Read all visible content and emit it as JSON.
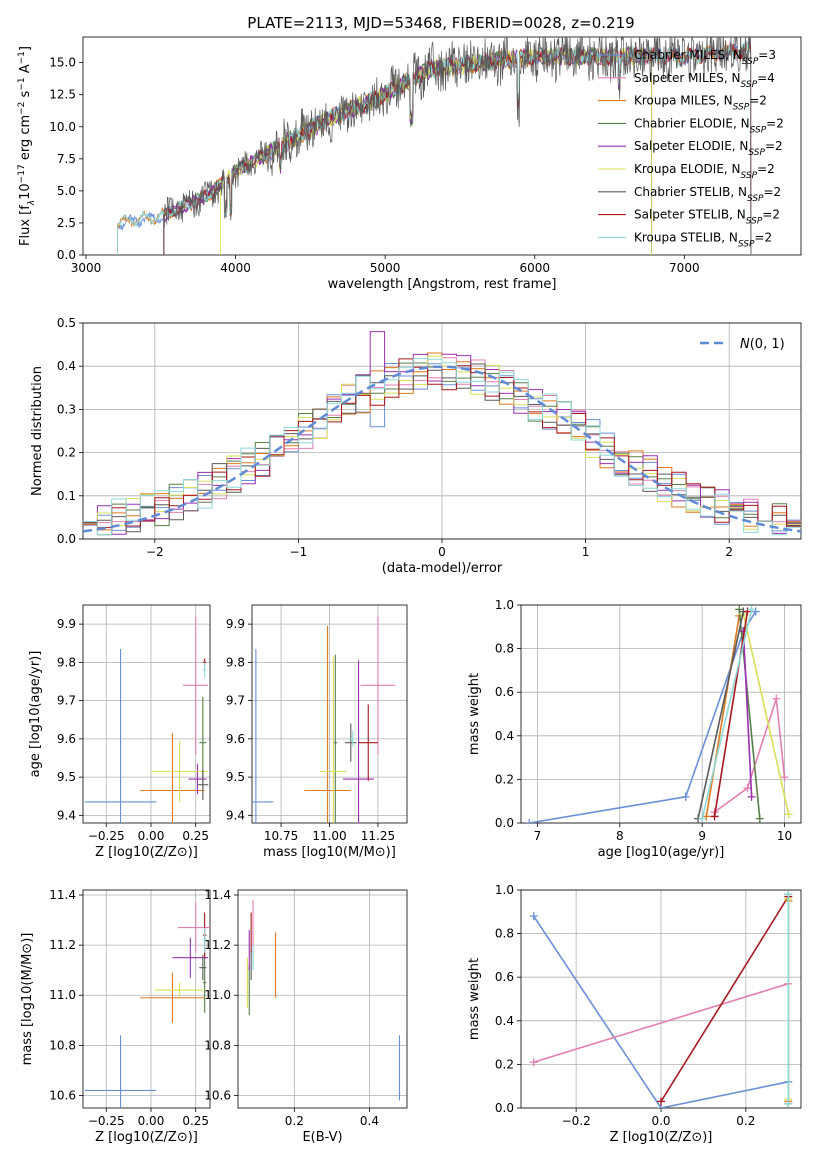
{
  "colors": {
    "Chabrier MILES": "#6a8fd8",
    "Salpeter MILES": "#e47fb2",
    "Kroupa MILES": "#e0781e",
    "Chabrier ELODIE": "#587f48",
    "Salpeter ELODIE": "#9b30b0",
    "Kroupa ELODIE": "#d8e05a",
    "Chabrier STELIB": "#5a5a5a",
    "Salpeter STELIB": "#a8171e",
    "Kroupa STELIB": "#8ed8d8",
    "Normal": "#5f8ad6"
  },
  "chart_data": [
    {
      "type": "line",
      "title": "PLATE=2113, MJD=53468, FIBERID=0028, z=0.219",
      "xlabel": "wavelength [Angstrom, rest frame]",
      "ylabel_parts": [
        "Flux [f",
        "λ",
        "10",
        "−17",
        " erg cm",
        "−2",
        " s",
        "−1",
        " A",
        "−1",
        "]"
      ],
      "xlim": [
        2980,
        7780
      ],
      "ylim": [
        0,
        17
      ],
      "xticks": [
        3000,
        4000,
        5000,
        6000,
        7000
      ],
      "yticks": [
        0.0,
        2.5,
        5.0,
        7.5,
        10.0,
        12.5,
        15.0
      ],
      "grid": false,
      "legend_position": "right",
      "legend": [
        {
          "prefix": "Chabrier MILES, N",
          "sub": "SSP",
          "suffix": "=3"
        },
        {
          "prefix": "Salpeter MILES, N",
          "sub": "SSP",
          "suffix": "=4"
        },
        {
          "prefix": "Kroupa MILES, N",
          "sub": "SSP",
          "suffix": "=2"
        },
        {
          "prefix": "Chabrier ELODIE, N",
          "sub": "SSP",
          "suffix": "=2"
        },
        {
          "prefix": "Salpeter ELODIE, N",
          "sub": "SSP",
          "suffix": "=2"
        },
        {
          "prefix": "Kroupa ELODIE, N",
          "sub": "SSP",
          "suffix": "=2"
        },
        {
          "prefix": "Chabrier STELIB, N",
          "sub": "SSP",
          "suffix": "=2"
        },
        {
          "prefix": "Salpeter STELIB, N",
          "sub": "SSP",
          "suffix": "=2"
        },
        {
          "prefix": "Kroupa STELIB, N",
          "sub": "SSP",
          "suffix": "=2"
        }
      ],
      "spectrum_start_angstrom": 3210,
      "spectrum_end_angstrom": 7445,
      "continuum_anchors": [
        [
          3210,
          2.5
        ],
        [
          3500,
          3.0
        ],
        [
          3800,
          4.5
        ],
        [
          4000,
          6.5
        ],
        [
          4300,
          8.5
        ],
        [
          4600,
          10.5
        ],
        [
          5000,
          12.5
        ],
        [
          5300,
          14.5
        ],
        [
          6000,
          15.5
        ],
        [
          7000,
          15.5
        ],
        [
          7440,
          16.0
        ]
      ]
    },
    {
      "type": "line",
      "xlabel": "(data-model)/error",
      "ylabel": "Normed distribution",
      "xlim": [
        -2.5,
        2.5
      ],
      "ylim": [
        0,
        0.5
      ],
      "xticks": [
        -2,
        -1,
        0,
        1,
        2
      ],
      "yticks": [
        0.0,
        0.1,
        0.2,
        0.3,
        0.4,
        0.5
      ],
      "grid": true,
      "legend_position": "upper right",
      "legend_label": "N(0,1)",
      "histogram_bins": 50,
      "normal_curve": {
        "mu": 0,
        "sigma": 1
      }
    },
    {
      "type": "scatter",
      "xlabel": "Z [log10(Z/Z⊙)]",
      "ylabel": "age  [log10(age/yr)]",
      "xlim": [
        -0.38,
        0.33
      ],
      "ylim": [
        9.38,
        9.95
      ],
      "xticks": [
        -0.25,
        0.0,
        0.25
      ],
      "yticks": [
        9.4,
        9.5,
        9.6,
        9.7,
        9.8,
        9.9
      ],
      "xtick_labels": [
        "−0.25",
        "0.00",
        "0.25"
      ],
      "grid": true,
      "points": [
        {
          "model": "Chabrier MILES",
          "x": -0.17,
          "xerr": 0.2,
          "y": 9.435,
          "yerr": 0.4
        },
        {
          "model": "Salpeter MILES",
          "x": 0.25,
          "xerr": 0.07,
          "y": 9.74,
          "yerr": 0.18
        },
        {
          "model": "Kroupa MILES",
          "x": 0.12,
          "xerr": 0.18,
          "y": 9.465,
          "yerr": 0.15
        },
        {
          "model": "Chabrier ELODIE",
          "x": 0.29,
          "xerr": 0.02,
          "y": 9.59,
          "yerr": 0.12
        },
        {
          "model": "Salpeter ELODIE",
          "x": 0.26,
          "xerr": 0.05,
          "y": 9.495,
          "yerr": 0.04
        },
        {
          "model": "Kroupa ELODIE",
          "x": 0.16,
          "xerr": 0.16,
          "y": 9.515,
          "yerr": 0.08
        },
        {
          "model": "Chabrier STELIB",
          "x": 0.29,
          "xerr": 0.03,
          "y": 9.48,
          "yerr": 0.04
        },
        {
          "model": "Salpeter STELIB",
          "x": 0.3,
          "xerr": 0.01,
          "y": 9.8,
          "yerr": 0.01
        },
        {
          "model": "Kroupa STELIB",
          "x": 0.3,
          "xerr": 0.01,
          "y": 9.78,
          "yerr": 0.02
        }
      ]
    },
    {
      "type": "scatter",
      "xlabel": "mass [log10(M/M⊙)]",
      "xlim": [
        10.6,
        11.4
      ],
      "ylim": [
        9.38,
        9.95
      ],
      "xticks": [
        10.75,
        11.0,
        11.25
      ],
      "yticks": [
        9.4,
        9.5,
        9.6,
        9.7,
        9.8,
        9.9
      ],
      "xtick_labels": [
        "10.75",
        "11.00",
        "11.25"
      ],
      "grid": true,
      "points": [
        {
          "model": "Chabrier MILES",
          "x": 10.62,
          "xerr": 0.09,
          "y": 9.435,
          "yerr": 0.4
        },
        {
          "model": "Salpeter MILES",
          "x": 11.25,
          "xerr": 0.09,
          "y": 9.74,
          "yerr": 0.18
        },
        {
          "model": "Kroupa MILES",
          "x": 10.99,
          "xerr": 0.12,
          "y": 9.465,
          "yerr": 0.43
        },
        {
          "model": "Chabrier ELODIE",
          "x": 11.03,
          "xerr": 0.01,
          "y": 9.59,
          "yerr": 0.23
        },
        {
          "model": "Salpeter ELODIE",
          "x": 11.15,
          "xerr": 0.08,
          "y": 9.495,
          "yerr": 0.31
        },
        {
          "model": "Kroupa ELODIE",
          "x": 11.02,
          "xerr": 0.07,
          "y": 9.515,
          "yerr": 0.3
        },
        {
          "model": "Chabrier STELIB",
          "x": 11.11,
          "xerr": 0.03,
          "y": 9.59,
          "yerr": 0.05
        },
        {
          "model": "Salpeter STELIB",
          "x": 11.2,
          "xerr": 0.05,
          "y": 9.59,
          "yerr": 0.1
        },
        {
          "model": "Kroupa STELIB",
          "x": 11.12,
          "xerr": 0.02,
          "y": 9.6,
          "yerr": 0.02
        }
      ]
    },
    {
      "type": "line",
      "xlabel": "age  [log10(age/yr)]",
      "ylabel": "mass weight",
      "xlim": [
        6.8,
        10.2
      ],
      "ylim": [
        0,
        1.0
      ],
      "xticks": [
        7,
        8,
        9,
        10
      ],
      "yticks": [
        0.0,
        0.2,
        0.4,
        0.6,
        0.8,
        1.0
      ],
      "grid": true,
      "series": [
        {
          "model": "Chabrier MILES",
          "x": [
            6.9,
            8.8,
            9.5,
            9.65
          ],
          "y": [
            0.0,
            0.12,
            0.88,
            0.97
          ]
        },
        {
          "model": "Salpeter MILES",
          "x": [
            9.15,
            9.55,
            9.9,
            10.0
          ],
          "y": [
            0.05,
            0.16,
            0.57,
            0.21
          ]
        },
        {
          "model": "Kroupa MILES",
          "x": [
            9.05,
            9.45
          ],
          "y": [
            0.03,
            0.95
          ]
        },
        {
          "model": "Chabrier ELODIE",
          "x": [
            9.45,
            9.7
          ],
          "y": [
            0.98,
            0.02
          ]
        },
        {
          "model": "Salpeter ELODIE",
          "x": [
            9.5,
            9.6
          ],
          "y": [
            0.88,
            0.12
          ]
        },
        {
          "model": "Kroupa ELODIE",
          "x": [
            9.5,
            10.05
          ],
          "y": [
            0.96,
            0.04
          ]
        },
        {
          "model": "Chabrier STELIB",
          "x": [
            8.95,
            9.5
          ],
          "y": [
            0.02,
            0.97
          ]
        },
        {
          "model": "Salpeter STELIB",
          "x": [
            9.15,
            9.55
          ],
          "y": [
            0.03,
            0.97
          ]
        },
        {
          "model": "Kroupa STELIB",
          "x": [
            9.0,
            9.6
          ],
          "y": [
            0.02,
            0.98
          ]
        }
      ]
    },
    {
      "type": "scatter",
      "xlabel": "Z [log10(Z/Z⊙)]",
      "ylabel": "mass [log10(M/M⊙)]",
      "xlim": [
        -0.38,
        0.33
      ],
      "ylim": [
        10.55,
        11.42
      ],
      "xticks": [
        -0.25,
        0.0,
        0.25
      ],
      "yticks": [
        10.6,
        10.8,
        11.0,
        11.2,
        11.4
      ],
      "xtick_labels": [
        "−0.25",
        "0.00",
        "0.25"
      ],
      "grid": true,
      "points": [
        {
          "model": "Chabrier MILES",
          "x": -0.17,
          "xerr": 0.2,
          "y": 10.62,
          "yerr": 0.22
        },
        {
          "model": "Salpeter MILES",
          "x": 0.25,
          "xerr": 0.1,
          "y": 11.27,
          "yerr": 0.1
        },
        {
          "model": "Kroupa MILES",
          "x": 0.12,
          "xerr": 0.18,
          "y": 10.99,
          "yerr": 0.1
        },
        {
          "model": "Chabrier ELODIE",
          "x": 0.3,
          "xerr": 0.01,
          "y": 11.05,
          "yerr": 0.12
        },
        {
          "model": "Salpeter ELODIE",
          "x": 0.22,
          "xerr": 0.1,
          "y": 11.15,
          "yerr": 0.08
        },
        {
          "model": "Kroupa ELODIE",
          "x": 0.16,
          "xerr": 0.14,
          "y": 11.02,
          "yerr": 0.03
        },
        {
          "model": "Chabrier STELIB",
          "x": 0.29,
          "xerr": 0.02,
          "y": 11.11,
          "yerr": 0.05
        },
        {
          "model": "Salpeter STELIB",
          "x": 0.3,
          "xerr": 0.01,
          "y": 11.24,
          "yerr": 0.09
        },
        {
          "model": "Kroupa STELIB",
          "x": 0.3,
          "xerr": 0.01,
          "y": 11.22,
          "yerr": 0.05
        }
      ]
    },
    {
      "type": "scatter",
      "xlabel": "E(B-V)",
      "xlim": [
        0.05,
        0.5
      ],
      "ylim": [
        10.55,
        11.42
      ],
      "xticks": [
        0.2,
        0.4
      ],
      "yticks": [
        10.6,
        10.8,
        11.0,
        11.2,
        11.4
      ],
      "xtick_labels": [
        "0.2",
        "0.4"
      ],
      "grid": true,
      "points": [
        {
          "model": "Chabrier MILES",
          "x": 0.48,
          "y": 10.71,
          "yerr": 0.13
        },
        {
          "model": "Salpeter MILES",
          "x": 0.09,
          "y": 11.25,
          "yerr": 0.13
        },
        {
          "model": "Kroupa MILES",
          "x": 0.15,
          "y": 11.12,
          "yerr": 0.13
        },
        {
          "model": "Chabrier ELODIE",
          "x": 0.08,
          "y": 11.02,
          "yerr": 0.1
        },
        {
          "model": "Salpeter ELODIE",
          "x": 0.08,
          "y": 11.18,
          "yerr": 0.08
        },
        {
          "model": "Kroupa ELODIE",
          "x": 0.075,
          "y": 11.05,
          "yerr": 0.1
        },
        {
          "model": "Chabrier STELIB",
          "x": 0.085,
          "y": 11.12,
          "yerr": 0.06
        },
        {
          "model": "Salpeter STELIB",
          "x": 0.085,
          "y": 11.25,
          "yerr": 0.08
        },
        {
          "model": "Kroupa STELIB",
          "x": 0.09,
          "y": 11.15,
          "yerr": 0.05
        }
      ]
    },
    {
      "type": "line",
      "xlabel": "Z [log10(Z/Z⊙)]",
      "ylabel": "mass weight",
      "xlim": [
        -0.33,
        0.33
      ],
      "ylim": [
        0,
        1.0
      ],
      "xticks": [
        -0.2,
        0.0,
        0.2
      ],
      "yticks": [
        0.0,
        0.2,
        0.4,
        0.6,
        0.8,
        1.0
      ],
      "xtick_labels": [
        "−0.2",
        "0.0",
        "0.2"
      ],
      "grid": true,
      "series": [
        {
          "model": "Chabrier MILES",
          "x": [
            -0.3,
            0.0,
            0.3
          ],
          "y": [
            0.88,
            0.0,
            0.12
          ]
        },
        {
          "model": "Salpeter MILES",
          "x": [
            -0.3,
            0.3
          ],
          "y": [
            0.21,
            0.57
          ]
        },
        {
          "model": "Salpeter STELIB",
          "x": [
            0.0,
            0.3
          ],
          "y": [
            0.03,
            0.97
          ]
        },
        {
          "model": "Kroupa MILES",
          "x": [
            0.3,
            0.3
          ],
          "y": [
            0.03,
            0.95
          ]
        },
        {
          "model": "Chabrier ELODIE",
          "x": [
            0.3,
            0.3
          ],
          "y": [
            0.02,
            0.98
          ]
        },
        {
          "model": "Kroupa ELODIE",
          "x": [
            0.3,
            0.3
          ],
          "y": [
            0.04,
            0.96
          ]
        },
        {
          "model": "Kroupa STELIB",
          "x": [
            0.3,
            0.3
          ],
          "y": [
            0.02,
            0.98
          ]
        }
      ]
    }
  ]
}
